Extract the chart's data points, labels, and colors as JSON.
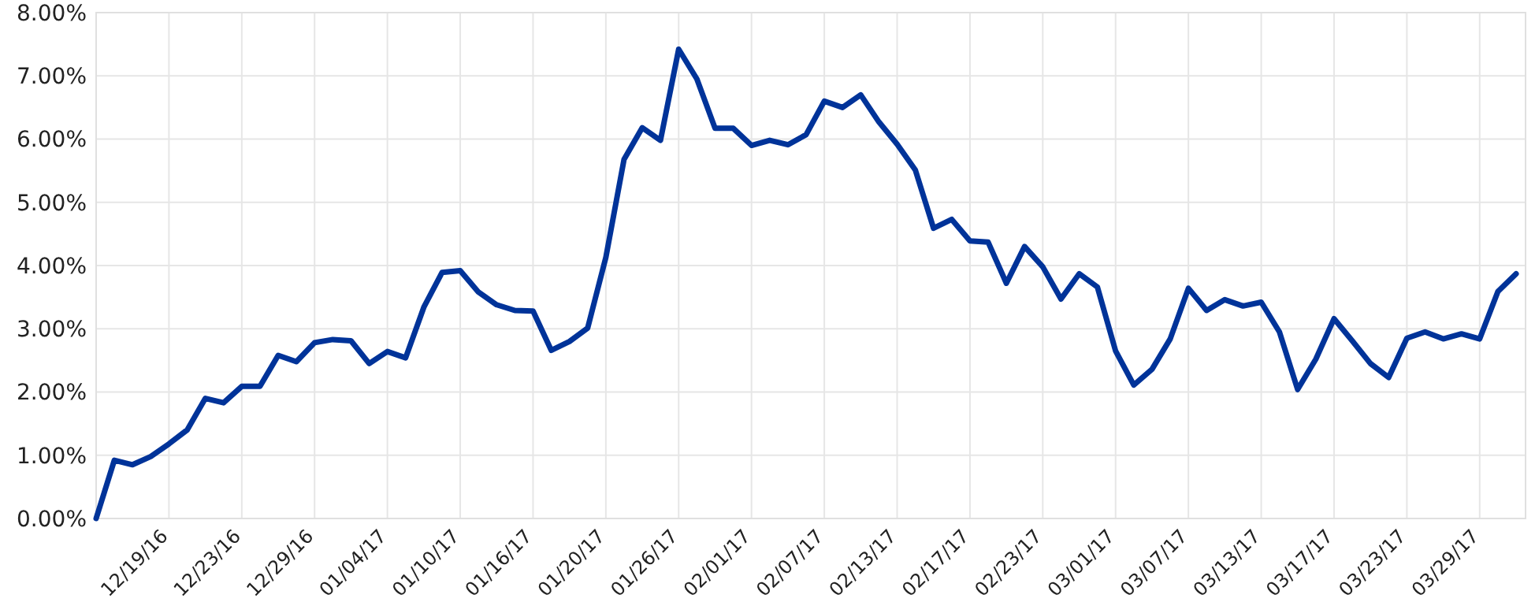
{
  "chart_data": {
    "type": "line",
    "categories": [
      null,
      null,
      null,
      null,
      "12/19/16",
      null,
      null,
      null,
      "12/23/16",
      null,
      null,
      null,
      "12/29/16",
      null,
      null,
      null,
      "01/04/17",
      null,
      null,
      null,
      "01/10/17",
      null,
      null,
      null,
      "01/16/17",
      null,
      null,
      null,
      "01/20/17",
      null,
      null,
      null,
      "01/26/17",
      null,
      null,
      null,
      "02/01/17",
      null,
      null,
      null,
      "02/07/17",
      null,
      null,
      null,
      "02/13/17",
      null,
      null,
      null,
      "02/17/17",
      null,
      null,
      null,
      "02/23/17",
      null,
      null,
      null,
      "03/01/17",
      null,
      null,
      null,
      "03/07/17",
      null,
      null,
      null,
      "03/13/17",
      null,
      null,
      null,
      "03/17/17",
      null,
      null,
      null,
      "03/23/17",
      null,
      null,
      null,
      "03/29/17",
      null,
      null
    ],
    "series": [
      {
        "color": "#003399",
        "values": [
          0.0,
          0.92,
          0.85,
          0.98,
          1.18,
          1.4,
          1.9,
          1.83,
          2.09,
          2.09,
          2.58,
          2.48,
          2.78,
          2.83,
          2.81,
          2.45,
          2.64,
          2.54,
          3.34,
          3.89,
          3.92,
          3.58,
          3.38,
          3.29,
          3.28,
          2.66,
          2.8,
          3.01,
          4.13,
          5.68,
          6.18,
          5.98,
          7.42,
          6.95,
          6.17,
          6.17,
          5.9,
          5.98,
          5.91,
          6.07,
          6.6,
          6.5,
          6.7,
          6.27,
          5.92,
          5.51,
          4.59,
          4.73,
          4.39,
          4.37,
          3.72,
          4.3,
          3.98,
          3.47,
          3.87,
          3.66,
          2.65,
          2.11,
          2.36,
          2.84,
          3.64,
          3.29,
          3.46,
          3.36,
          3.42,
          2.95,
          2.04,
          2.52,
          3.16,
          2.81,
          2.45,
          2.23,
          2.85,
          2.95,
          2.84,
          2.92,
          2.84,
          3.59,
          3.87
        ]
      }
    ],
    "ylim": [
      0,
      8
    ],
    "yticks": [
      {
        "value": 0,
        "label": "0.00%"
      },
      {
        "value": 1,
        "label": "1.00%"
      },
      {
        "value": 2,
        "label": "2.00%"
      },
      {
        "value": 3,
        "label": "3.00%"
      },
      {
        "value": 4,
        "label": "4.00%"
      },
      {
        "value": 5,
        "label": "5.00%"
      },
      {
        "value": 6,
        "label": "6.00%"
      },
      {
        "value": 7,
        "label": "7.00%"
      },
      {
        "value": 8,
        "label": "8.00%"
      }
    ],
    "grid": true,
    "line_style": "solid",
    "marker": "none"
  }
}
